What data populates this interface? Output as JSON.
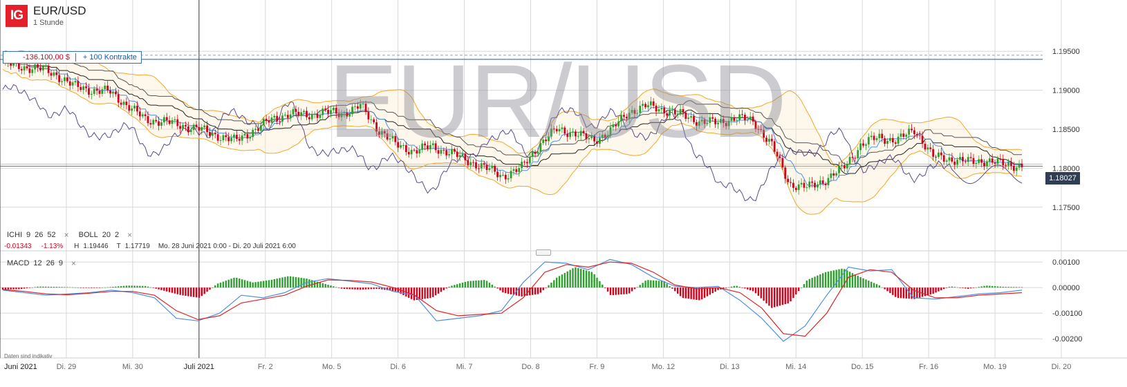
{
  "header": {
    "logo_text": "IG",
    "symbol": "EUR/USD",
    "interval": "1 Stunde"
  },
  "watermark": "EUR/USD",
  "position": {
    "pnl": "-136.100,00 $",
    "size": "+ 100 Kontrakte"
  },
  "indicators": {
    "ichimoku": {
      "name": "ICHI",
      "p1": "9",
      "p2": "26",
      "p3": "52"
    },
    "bollinger": {
      "name": "BOLL",
      "p1": "20",
      "p2": "2"
    },
    "macd": {
      "name": "MACD",
      "p1": "12",
      "p2": "26",
      "p3": "9"
    },
    "close_symbol": "×"
  },
  "stats": {
    "change": "-0.01343",
    "change_pct": "-1.13%",
    "high_label": "H",
    "high": "1.19446",
    "low_label": "T",
    "low": "1.17719",
    "range": "Mo. 28 Juni 2021 0:00 - Di. 20 Juli 2021 6:00"
  },
  "current_price": "1.18027",
  "disclaimer": "Daten sind indikativ",
  "colors": {
    "up": "#2ca02c",
    "down": "#d0021b",
    "bollinger": "#f5a623",
    "ichimoku_base": "#5b4a8a",
    "macd_line": "#4a90e2",
    "signal_line": "#e02424",
    "price_tag": "#2f3e55"
  },
  "chart_data": [
    {
      "type": "candlestick",
      "title": "EUR/USD",
      "ylim": [
        1.1725,
        1.1975
      ],
      "y_ticks": [
        "1.19500",
        "1.19000",
        "1.18500",
        "1.18000",
        "1.17500"
      ],
      "x_ticks": [
        "Juni 2021",
        "Di. 29",
        "Mi. 30",
        "Juli 2021",
        "Fr. 2",
        "Mo. 5",
        "Di. 6",
        "Mi. 7",
        "Do. 8",
        "Fr. 9",
        "Mo. 12",
        "Di. 13",
        "Mi. 14",
        "Do. 15",
        "Fr. 16",
        "Mo. 19",
        "Di. 20"
      ],
      "close_path": [
        1.1935,
        1.193,
        1.1928,
        1.192,
        1.1905,
        1.19,
        1.1898,
        1.188,
        1.1862,
        1.186,
        1.1855,
        1.185,
        1.1842,
        1.1835,
        1.1848,
        1.1862,
        1.187,
        1.1868,
        1.1872,
        1.187,
        1.188,
        1.185,
        1.183,
        1.1822,
        1.1828,
        1.182,
        1.181,
        1.18,
        1.179,
        1.18,
        1.183,
        1.185,
        1.1845,
        1.1835,
        1.1848,
        1.1872,
        1.188,
        1.1875,
        1.1868,
        1.186,
        1.1858,
        1.1865,
        1.186,
        1.183,
        1.178,
        1.1775,
        1.1785,
        1.18,
        1.183,
        1.184,
        1.1835,
        1.185,
        1.1815,
        1.1812,
        1.1808,
        1.181,
        1.1805,
        1.1803
      ],
      "position_line": 1.19397,
      "current_price": 1.18027
    },
    {
      "type": "bar",
      "title": "MACD 12 26 9",
      "ylim": [
        -0.0024,
        0.0013
      ],
      "y_ticks": [
        "0.00100",
        "0.00000",
        "-0.00100",
        "-0.00200"
      ],
      "histogram": [
        -8e-05,
        -6e-05,
        4e-05,
        3e-05,
        1e-05,
        -2e-05,
        2e-05,
        8e-05,
        6e-05,
        -0.00012,
        -0.0003,
        -0.0004,
        0.00015,
        0.0004,
        0.0002,
        0.0003,
        0.00045,
        0.00035,
        0.00015,
        -5e-05,
        -8e-05,
        -5e-05,
        -0.00015,
        -0.0005,
        -0.0004,
        5e-05,
        0.00025,
        0.0003,
        -0.0002,
        -0.00035,
        -0.00025,
        0.0004,
        0.0008,
        0.0006,
        -0.0003,
        -0.00025,
        0.0003,
        0.00025,
        -0.0004,
        -0.0005,
        -0.0001,
        8e-05,
        -0.00015,
        -0.0008,
        -0.0006,
        0.0003,
        0.0006,
        0.00075,
        0.0004,
        0.0001,
        -0.0004,
        -0.00045,
        -0.00025,
        5e-05,
        -5e-05,
        8e-05,
        3e-05,
        2e-05
      ],
      "macd": [
        -0.0001,
        -0.0002,
        -0.0003,
        -0.00025,
        -0.0002,
        -0.0001,
        -0.0002,
        -0.0004,
        -0.0012,
        -0.0013,
        -0.001,
        -0.0003,
        -0.0004,
        -0.0002,
        0.0002,
        0.00035,
        0.00025,
        0.00015,
        -0.00015,
        -0.0003,
        -0.0013,
        -0.0012,
        -0.0011,
        -0.0009,
        0.0002,
        0.001,
        0.00095,
        0.0007,
        0.0011,
        0.0009,
        0.0004,
        5e-05,
        0.0,
        5e-05,
        -0.0005,
        -0.0012,
        -0.0021,
        -0.0015,
        -0.0003,
        0.0008,
        0.00065,
        0.0007,
        -0.0004,
        -0.00045,
        -0.00035,
        -0.00025,
        -0.0002,
        -0.0001
      ],
      "signal": [
        -8e-05,
        -0.00015,
        -0.00025,
        -0.00028,
        -0.00022,
        -0.00015,
        -0.00015,
        -0.0003,
        -0.0009,
        -0.00125,
        -0.0011,
        -0.0006,
        -0.00045,
        -0.0003,
        5e-05,
        0.0003,
        0.00028,
        0.00022,
        0.0,
        -0.0003,
        -0.0009,
        -0.0011,
        -0.00105,
        -0.001,
        -0.0004,
        0.0006,
        0.0009,
        0.0008,
        0.001,
        0.00095,
        0.0006,
        0.0001,
        -5e-05,
        0.0,
        -0.0002,
        -0.0008,
        -0.0018,
        -0.0019,
        -0.001,
        0.0004,
        0.0007,
        0.0006,
        -0.0001,
        -0.0004,
        -0.0004,
        -0.0003,
        -0.00025,
        -0.0002
      ]
    }
  ]
}
